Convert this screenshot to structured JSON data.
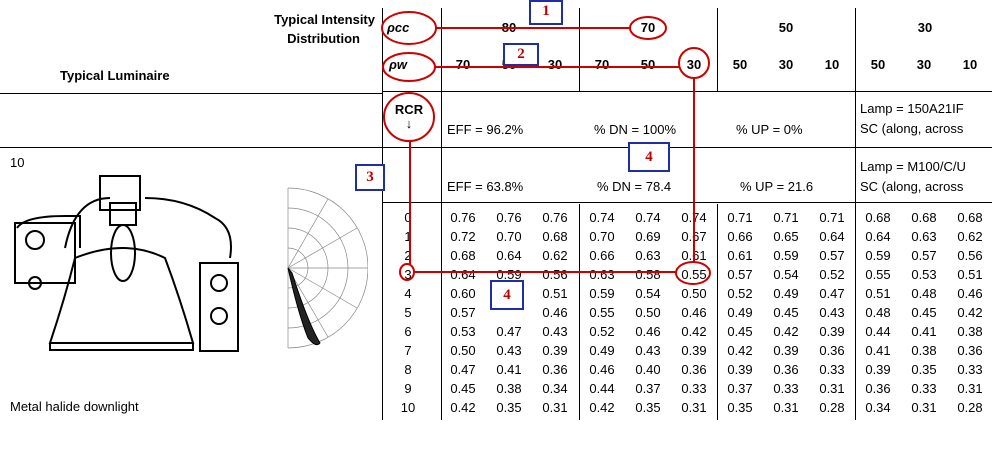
{
  "header": {
    "intensity_label_line1": "Typical Intensity",
    "intensity_label_line2": "Distribution",
    "luminaire_label": "Typical Luminaire",
    "pcc_symbol": "ρcc",
    "pw_symbol": "ρw",
    "rcr_label": "RCR",
    "rcr_arrow": "↓",
    "pcc_values": [
      "80",
      "70",
      "50",
      "30"
    ],
    "pw_values": [
      "70",
      "50",
      "30",
      "70",
      "50",
      "30",
      "50",
      "30",
      "10",
      "50",
      "30",
      "10"
    ]
  },
  "row1": {
    "eff": "EFF = 96.2%",
    "dn": "% DN = 100%",
    "up": "% UP = 0%",
    "lamp": "Lamp = 150A21IF",
    "sc": "SC (along, across"
  },
  "luminaire": {
    "number": "10",
    "eff": "EFF = 63.8%",
    "dn": "% DN = 78.4",
    "up": "% UP = 21.6",
    "lamp": "Lamp = M100/C/U",
    "sc": "SC (along, across",
    "name": "Metal halide downlight"
  },
  "cu_table": {
    "rcr": [
      "0",
      "1",
      "2",
      "3",
      "4",
      "5",
      "6",
      "7",
      "8",
      "9",
      "10"
    ],
    "rows": [
      [
        "0.76",
        "0.76",
        "0.76",
        "0.74",
        "0.74",
        "0.74",
        "0.71",
        "0.71",
        "0.71",
        "0.68",
        "0.68",
        "0.68"
      ],
      [
        "0.72",
        "0.70",
        "0.68",
        "0.70",
        "0.69",
        "0.67",
        "0.66",
        "0.65",
        "0.64",
        "0.64",
        "0.63",
        "0.62"
      ],
      [
        "0.68",
        "0.64",
        "0.62",
        "0.66",
        "0.63",
        "0.61",
        "0.61",
        "0.59",
        "0.57",
        "0.59",
        "0.57",
        "0.56"
      ],
      [
        "0.64",
        "0.59",
        "0.56",
        "0.63",
        "0.58",
        "0.55",
        "0.57",
        "0.54",
        "0.52",
        "0.55",
        "0.53",
        "0.51"
      ],
      [
        "0.60",
        "",
        "0.51",
        "0.59",
        "0.54",
        "0.50",
        "0.52",
        "0.49",
        "0.47",
        "0.51",
        "0.48",
        "0.46"
      ],
      [
        "0.57",
        "",
        "0.46",
        "0.55",
        "0.50",
        "0.46",
        "0.49",
        "0.45",
        "0.43",
        "0.48",
        "0.45",
        "0.42"
      ],
      [
        "0.53",
        "0.47",
        "0.43",
        "0.52",
        "0.46",
        "0.42",
        "0.45",
        "0.42",
        "0.39",
        "0.44",
        "0.41",
        "0.38"
      ],
      [
        "0.50",
        "0.43",
        "0.39",
        "0.49",
        "0.43",
        "0.39",
        "0.42",
        "0.39",
        "0.36",
        "0.41",
        "0.38",
        "0.36"
      ],
      [
        "0.47",
        "0.41",
        "0.36",
        "0.46",
        "0.40",
        "0.36",
        "0.39",
        "0.36",
        "0.33",
        "0.39",
        "0.35",
        "0.33"
      ],
      [
        "0.45",
        "0.38",
        "0.34",
        "0.44",
        "0.37",
        "0.33",
        "0.37",
        "0.33",
        "0.31",
        "0.36",
        "0.33",
        "0.31"
      ],
      [
        "0.42",
        "0.35",
        "0.31",
        "0.42",
        "0.35",
        "0.31",
        "0.35",
        "0.31",
        "0.28",
        "0.34",
        "0.31",
        "0.28"
      ]
    ]
  },
  "annotations": {
    "step1": "1",
    "step2": "2",
    "step3": "3",
    "step4a": "4",
    "step4b": "4"
  },
  "colors": {
    "annotation_line": "#cc0000",
    "annotation_box_border": "#1e2ea6",
    "annotation_number": "#c00000"
  }
}
